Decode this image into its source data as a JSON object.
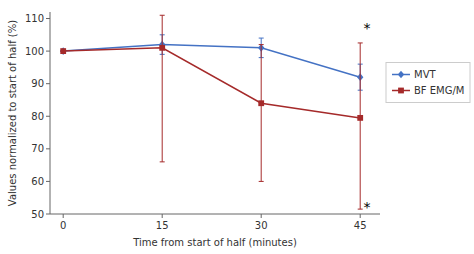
{
  "chart_data": {
    "type": "line",
    "x": [
      0,
      15,
      30,
      45
    ],
    "xlabel": "Time from start of half (minutes)",
    "ylabel": "Values normalized to start of half (%)",
    "xlim": [
      -2,
      48
    ],
    "ylim": [
      50,
      112
    ],
    "xticks": [
      0,
      15,
      30,
      45
    ],
    "yticks": [
      50,
      60,
      70,
      80,
      90,
      100,
      110
    ],
    "grid": false,
    "legend": "right",
    "series": [
      {
        "name": "MVT",
        "color": "#4472C4",
        "marker": "diamond",
        "values": [
          100,
          102,
          101,
          92
        ],
        "errors_low": [
          0,
          3,
          3,
          4
        ],
        "errors_high": [
          0,
          3,
          3,
          4
        ]
      },
      {
        "name": "BF EMG/M",
        "color": "#A52A2A",
        "marker": "square",
        "values": [
          100,
          101,
          84,
          79.5
        ],
        "errors_low": [
          0,
          35,
          24,
          28
        ],
        "errors_high": [
          0,
          10,
          18,
          23
        ]
      }
    ],
    "annotations": [
      {
        "text": "*",
        "x": 45.5,
        "y": 107
      },
      {
        "text": "*",
        "x": 45.5,
        "y": 52
      }
    ]
  }
}
